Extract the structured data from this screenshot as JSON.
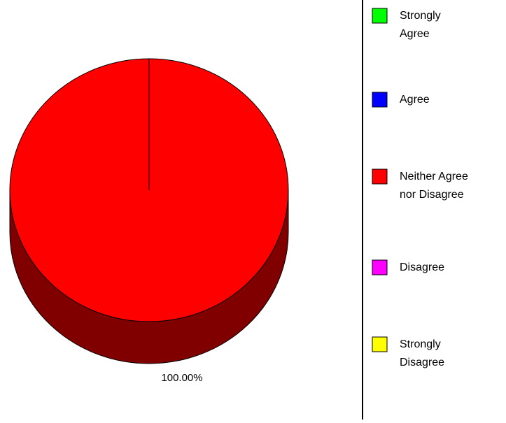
{
  "chart_data": {
    "type": "pie",
    "title": "",
    "three_d": true,
    "categories": [
      "Strongly Agree",
      "Agree",
      "Neither Agree nor Disagree",
      "Disagree",
      "Strongly Disagree"
    ],
    "values": [
      0,
      0,
      100,
      0,
      0
    ],
    "data_labels": [
      "100.00%"
    ],
    "colors": [
      "#00ff00",
      "#0000ff",
      "#ff0000",
      "#ff00ff",
      "#ffff00"
    ],
    "side_colors": [
      "#008000",
      "#000080",
      "#800000",
      "#800080",
      "#808000"
    ],
    "legend": {
      "placement": "right",
      "entries": [
        {
          "lines": [
            "Strongly",
            "Agree"
          ]
        },
        {
          "lines": [
            "Agree"
          ]
        },
        {
          "lines": [
            "Neither Agree",
            "nor Disagree"
          ]
        },
        {
          "lines": [
            "Disagree"
          ]
        },
        {
          "lines": [
            "Strongly",
            "Disagree"
          ]
        }
      ]
    }
  }
}
